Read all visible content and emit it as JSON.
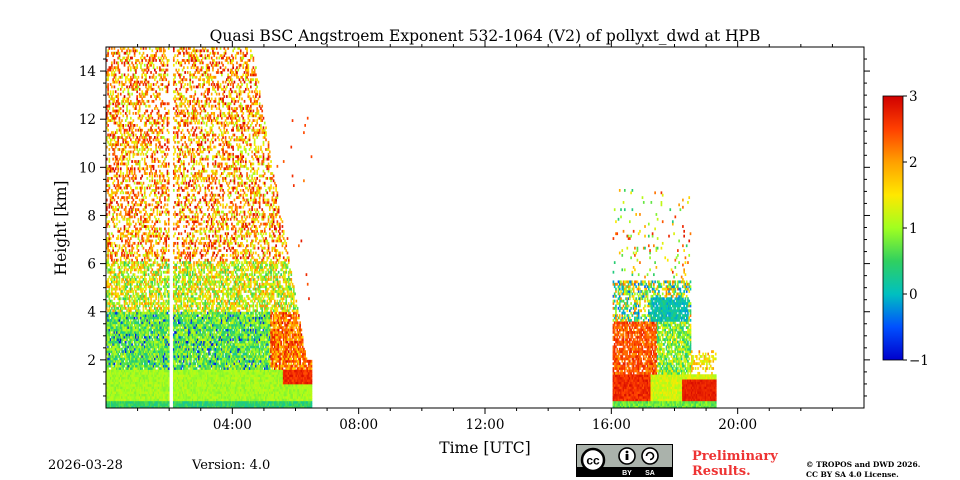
{
  "chart_data": {
    "type": "heatmap",
    "title": "Quasi BSC Angstroem Exponent 532-1064 (V2) of pollyxt_dwd at HPB",
    "xlabel": "Time [UTC]",
    "ylabel": "Height [km]",
    "xlim": [
      0,
      24
    ],
    "ylim": [
      0,
      15
    ],
    "x_ticks": [
      4,
      8,
      12,
      16,
      20
    ],
    "x_tick_labels": [
      "04:00",
      "08:00",
      "12:00",
      "16:00",
      "20:00"
    ],
    "y_ticks": [
      2,
      4,
      6,
      8,
      10,
      12,
      14
    ],
    "y_tick_labels": [
      "2",
      "4",
      "6",
      "8",
      "10",
      "12",
      "14"
    ],
    "colorbar": {
      "range": [
        -1,
        3
      ],
      "ticks": [
        -1,
        0,
        1,
        2,
        3
      ],
      "tick_labels": [
        "−1",
        "0",
        "1",
        "2",
        "3"
      ],
      "colormap": "jet"
    },
    "data_gaps": [
      [
        2.0,
        2.1
      ]
    ],
    "segments": [
      {
        "t_start": 0.0,
        "t_end": 6.5,
        "note": "noisy near-field to 15 km, dense aerosol below 4 km"
      },
      {
        "t_start": 16.0,
        "t_end": 19.3,
        "note": "evening aerosol layer up to ~5 km"
      }
    ]
  },
  "footer": {
    "date": "2026-03-28",
    "version": "Version: 4.0",
    "preliminary_line1": "Preliminary",
    "preliminary_line2": "Results.",
    "copyright_line1": "© TROPOS and DWD 2026.",
    "copyright_line2": "CC BY SA 4.0 License.",
    "license_cc": "cc",
    "license_by": "BY",
    "license_sa": "SA"
  }
}
